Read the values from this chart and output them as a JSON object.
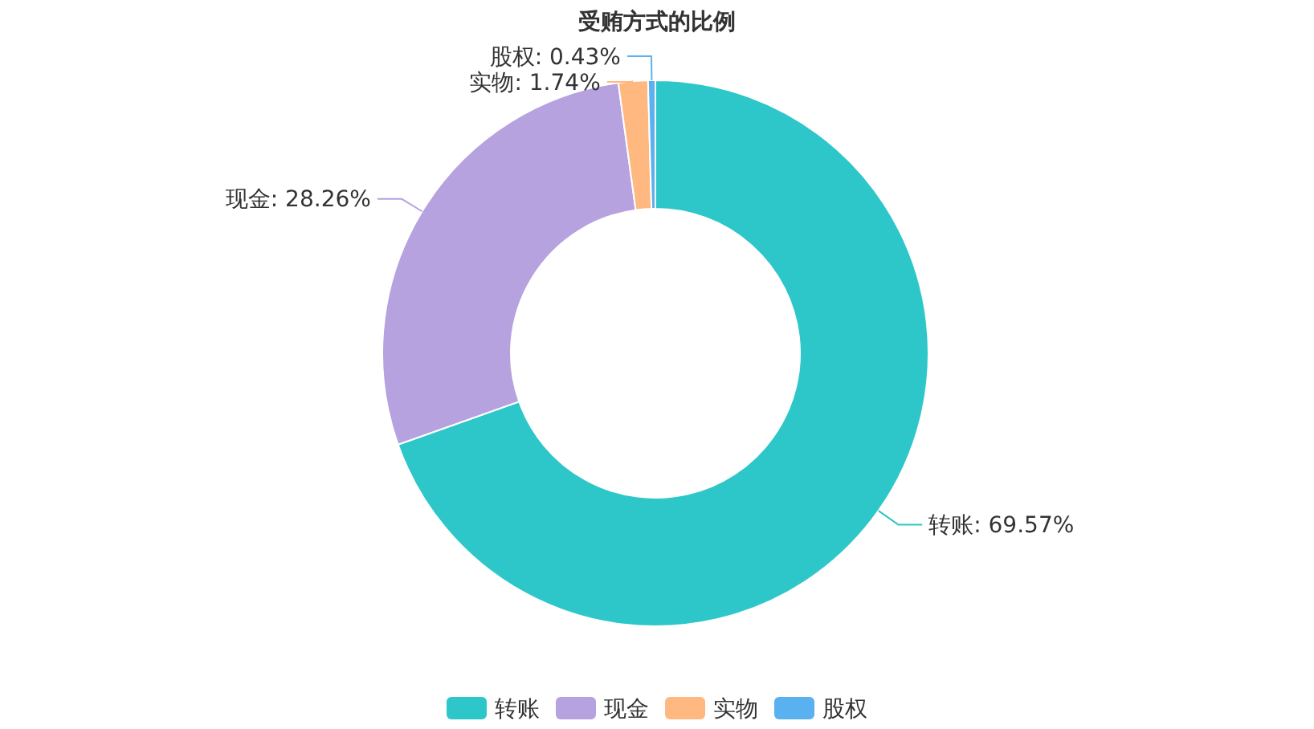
{
  "chart_data": {
    "type": "donut",
    "title": "受贿方式的比例",
    "categories": [
      "转账",
      "现金",
      "实物",
      "股权"
    ],
    "values": [
      69.57,
      28.26,
      1.74,
      0.43
    ],
    "colors": [
      "#2ec7c9",
      "#b6a2de",
      "#ffb980",
      "#5ab1ef"
    ],
    "value_labels": [
      "转账: 69.57%",
      "现金: 28.26%",
      "实物: 1.74%",
      "股权: 0.43%"
    ],
    "legend": "bottom"
  }
}
